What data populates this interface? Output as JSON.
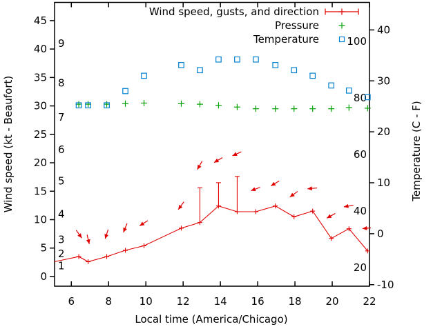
{
  "chart_data": {
    "type": "line",
    "title": "",
    "xlabel": "Local time (America/Chicago)",
    "ylabel_left": "Wind speed (kt - Beaufort)",
    "ylabel_right": "Temperature (C - F)",
    "grid": false,
    "legend_position": "top-right-inside",
    "x_ticks": [
      6,
      8,
      10,
      12,
      14,
      16,
      18,
      20,
      22
    ],
    "x_range": [
      5.1,
      22.0
    ],
    "wind_axis": {
      "ticks": [
        0,
        5,
        10,
        15,
        20,
        25,
        30,
        35,
        40,
        45
      ],
      "range": [
        -1.7,
        48.2
      ]
    },
    "temp_axis_c": {
      "ticks": [
        -10,
        0,
        10,
        20,
        30,
        40
      ],
      "range": [
        -10.3,
        45.4
      ]
    },
    "temp_inner_f_labels": [
      20,
      40,
      60,
      80,
      100
    ],
    "beaufort_scale_labels": [
      {
        "beaufort": "1",
        "kt": 1.9
      },
      {
        "beaufort": "2",
        "kt": 4.0
      },
      {
        "beaufort": "3",
        "kt": 6.5
      },
      {
        "beaufort": "4",
        "kt": 11.0
      },
      {
        "beaufort": "5",
        "kt": 16.8
      },
      {
        "beaufort": "6",
        "kt": 22.3
      },
      {
        "beaufort": "7",
        "kt": 28.0
      },
      {
        "beaufort": "8",
        "kt": 34.0
      },
      {
        "beaufort": "9",
        "kt": 41.0
      }
    ],
    "times_h": [
      6.4,
      6.9,
      7.9,
      8.9,
      9.9,
      11.9,
      12.9,
      13.9,
      14.9,
      15.9,
      16.95,
      17.95,
      18.95,
      19.95,
      20.9,
      21.9
    ],
    "series": [
      {
        "name": "Wind speed, gusts, and direction",
        "marker": "plus-errorbar-arrow",
        "color": "#e00000",
        "lead_in_point": {
          "t": 5.1,
          "kt": 2.6
        },
        "wind_kt": [
          3.5,
          2.6,
          3.5,
          4.6,
          5.4,
          8.5,
          9.5,
          12.4,
          11.4,
          11.4,
          12.4,
          10.5,
          11.5,
          6.7,
          8.4,
          4.5
        ],
        "gust_kt": [
          null,
          null,
          null,
          null,
          null,
          null,
          15.6,
          16.5,
          17.6,
          null,
          null,
          null,
          null,
          null,
          null,
          null
        ],
        "direction_deg_screen": [
          55,
          77,
          108,
          112,
          147,
          126,
          120,
          150,
          156,
          160,
          149,
          144,
          175,
          151,
          170,
          175
        ]
      },
      {
        "name": "Pressure",
        "marker": "plus",
        "color": "#00a000",
        "values_wind_axis": [
          30.3,
          30.3,
          30.3,
          30.4,
          30.5,
          30.4,
          30.3,
          30.1,
          29.8,
          29.5,
          29.5,
          29.5,
          29.5,
          29.5,
          29.7,
          29.6
        ]
      },
      {
        "name": "Temperature",
        "marker": "open-square",
        "color": "#0080d0",
        "values_c": [
          25.2,
          25.2,
          25.2,
          28.0,
          31.0,
          33.1,
          32.1,
          34.2,
          34.2,
          34.2,
          33.1,
          32.1,
          31.0,
          29.1,
          28.1,
          26.8
        ]
      }
    ]
  }
}
